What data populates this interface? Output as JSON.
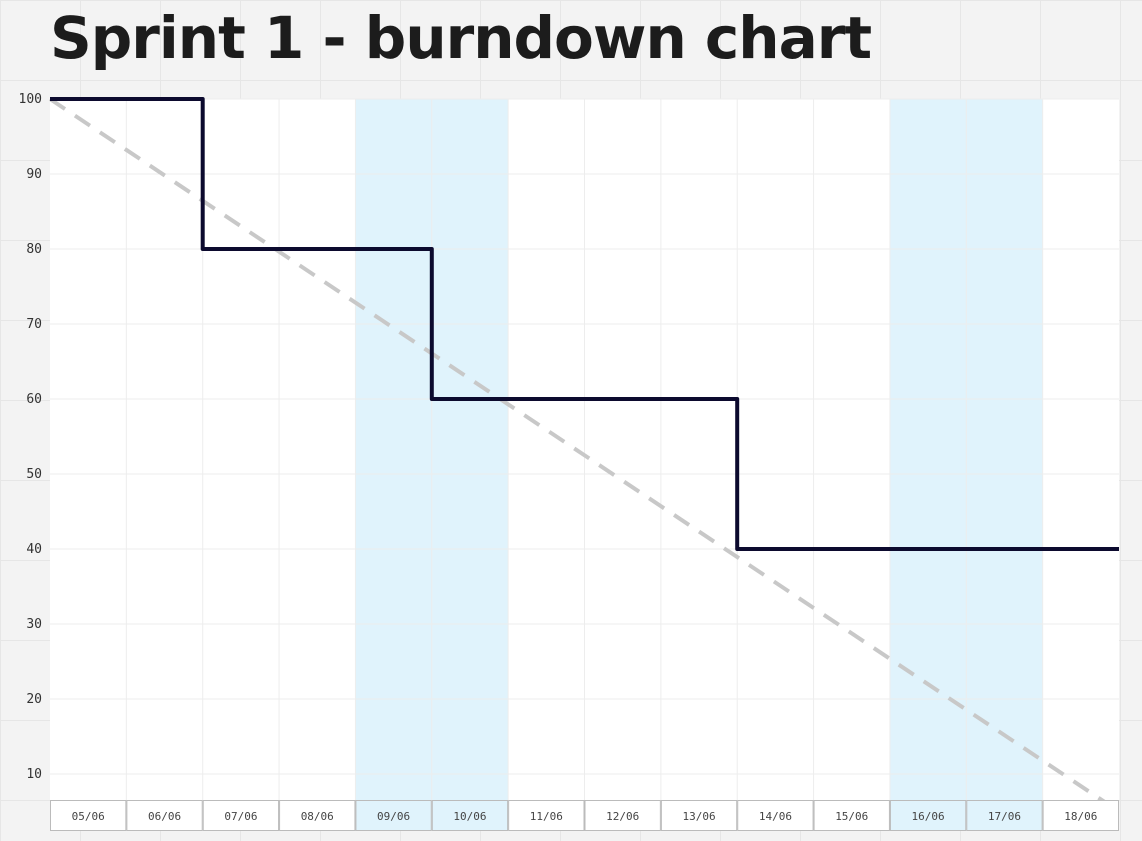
{
  "title": "Sprint 1 - burndown chart",
  "chart_data": {
    "type": "line",
    "title": "Sprint 1 - burndown chart",
    "xlabel": "",
    "ylabel": "",
    "categories": [
      "05/06",
      "06/06",
      "07/06",
      "08/06",
      "09/06",
      "10/06",
      "11/06",
      "12/06",
      "13/06",
      "14/06",
      "15/06",
      "16/06",
      "17/06",
      "18/06"
    ],
    "yticks": [
      100,
      90,
      80,
      70,
      60,
      50,
      40,
      30,
      20,
      10
    ],
    "ylim": [
      5,
      100
    ],
    "weekend_categories": [
      "09/06",
      "10/06",
      "16/06",
      "17/06"
    ],
    "grid": true,
    "legend": "none",
    "series": [
      {
        "style": "step",
        "line_style": "solid",
        "color": "#0c0a2e",
        "points": [
          [
            0,
            100
          ],
          [
            2,
            100
          ],
          [
            2,
            80
          ],
          [
            5,
            80
          ],
          [
            5,
            60
          ],
          [
            9,
            60
          ],
          [
            9,
            40
          ],
          [
            14,
            40
          ]
        ]
      },
      {
        "style": "ideal",
        "line_style": "dashed",
        "color": "#c8c8c8",
        "points": [
          [
            0,
            100
          ],
          [
            14,
            5
          ]
        ]
      }
    ],
    "colors": {
      "plot_background": "#ffffff",
      "weekend_band": "#e0f3fc",
      "grid_line": "#ededed",
      "axis_box_border": "#bbbbbb"
    }
  }
}
